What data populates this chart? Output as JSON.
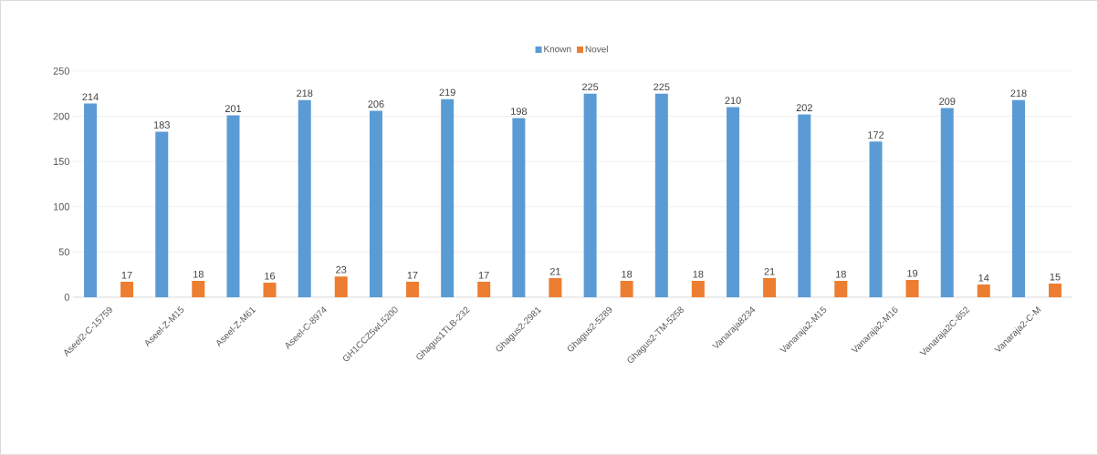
{
  "chart_data": {
    "type": "bar",
    "categories": [
      "Aseel2-C-15759",
      "Aseel-Z-M15",
      "Aseel-Z-M61",
      "Aseel-C-8974",
      "GH1CCZ5wL5200",
      "Ghagus1TLB-232",
      "Ghagus2-2981",
      "Ghagus2-5289",
      "Ghagus2-TM-5258",
      "Vanaraja8234",
      "Vanaraja2-M15",
      "Vanaraja2-M16",
      "Vanaraja2C-852",
      "Vanaraja2-C-M"
    ],
    "series": [
      {
        "name": "Known",
        "color": "#5b9bd5",
        "values": [
          214,
          183,
          201,
          218,
          206,
          219,
          198,
          225,
          225,
          210,
          202,
          172,
          209,
          218
        ]
      },
      {
        "name": "Novel",
        "color": "#ed7d31",
        "values": [
          17,
          18,
          16,
          23,
          17,
          17,
          21,
          18,
          18,
          21,
          18,
          19,
          14,
          15
        ]
      }
    ],
    "ylim": [
      0,
      250
    ],
    "yticks": [
      0,
      50,
      100,
      150,
      200,
      250
    ],
    "grid": "y",
    "legend": "top",
    "data_labels": true
  }
}
